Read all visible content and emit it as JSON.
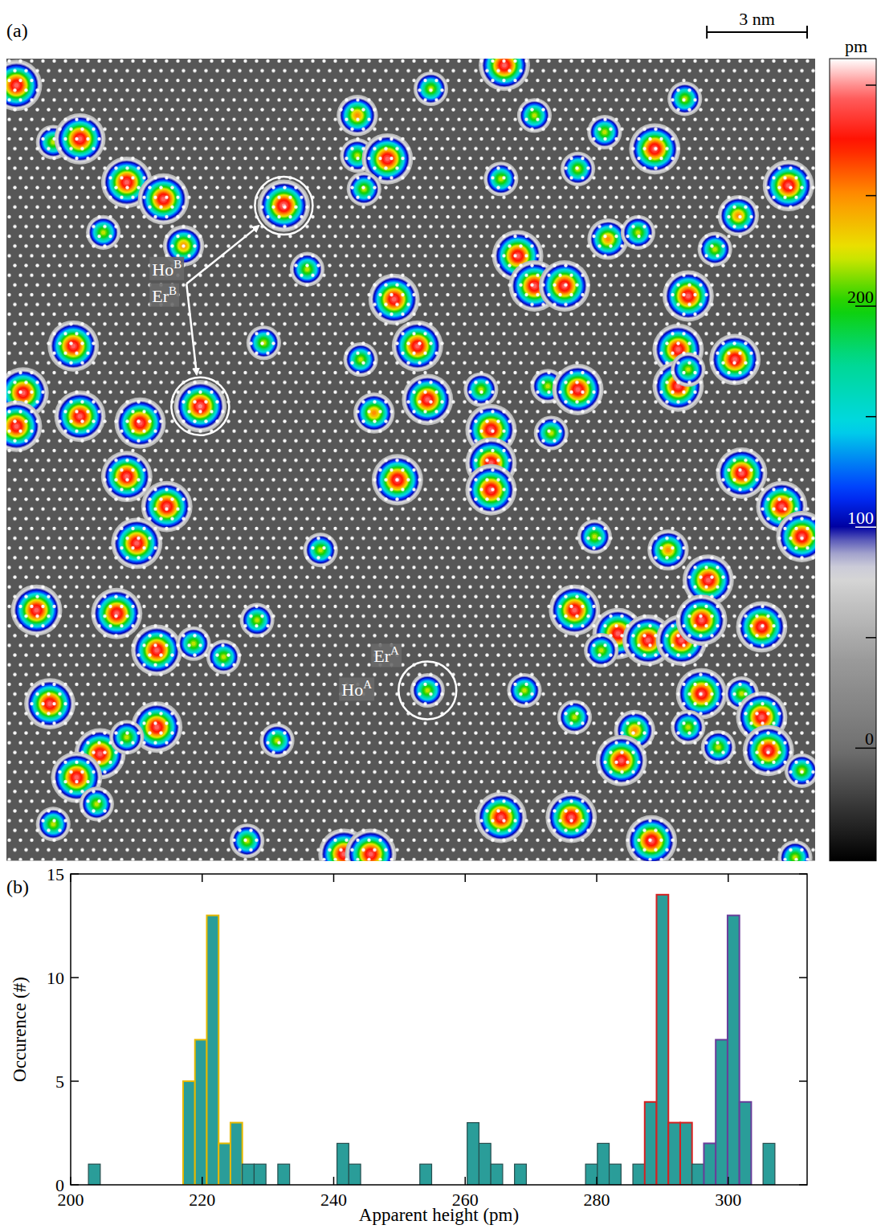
{
  "chart_data": [
    {
      "type": "image",
      "panel": "(a)",
      "scale_bar": {
        "length": 3,
        "label": "3 nm"
      },
      "extent_nm": [
        24.2,
        24.0
      ],
      "adsorbates": {
        "x": [
          0.3,
          1.4,
          2.2,
          3.6,
          4.7,
          2.9,
          5.3,
          8.3,
          9.0,
          10.5,
          10.5,
          11.4,
          10.7,
          12.7,
          14.9,
          15.8,
          17.9,
          19.4,
          20.3,
          17.1,
          14.8,
          23.4,
          21.9,
          15.3,
          18.0,
          18.9,
          21.2,
          15.8,
          16.7,
          11.6,
          20.4,
          7.7,
          2.0,
          12.3,
          20.1,
          20.1,
          20.4,
          21.8,
          10.6,
          11.0,
          5.8,
          0.5,
          0.3,
          2.2,
          4.0,
          12.6,
          14.2,
          16.2,
          17.1,
          14.5,
          14.5,
          14.5,
          16.3,
          3.6,
          11.7,
          22.0,
          4.8,
          23.2,
          23.8,
          17.6,
          9.4,
          3.9,
          19.8,
          21.0,
          0.9,
          3.3,
          17.0,
          4.5,
          5.6,
          6.5,
          7.5,
          18.3,
          19.2,
          20.2,
          20.8,
          17.8,
          22.6,
          12.6,
          15.5,
          17.0,
          20.8,
          22.0,
          22.6,
          1.3,
          4.5,
          2.8,
          3.6,
          2.1,
          2.7,
          18.8,
          18.4,
          20.4,
          21.3,
          22.8,
          8.1,
          23.8,
          1.4,
          14.8,
          16.9,
          19.3,
          7.2,
          10.1,
          10.9,
          23.6
        ],
        "y": [
          0.8,
          2.5,
          2.4,
          3.7,
          4.2,
          5.2,
          5.6,
          4.4,
          6.3,
          1.7,
          2.9,
          3.0,
          3.9,
          0.9,
          0.2,
          1.7,
          2.2,
          2.7,
          1.2,
          3.3,
          3.6,
          3.8,
          4.7,
          5.9,
          5.4,
          5.2,
          5.7,
          6.8,
          6.8,
          7.2,
          7.1,
          8.5,
          8.6,
          8.6,
          8.7,
          9.8,
          9.3,
          9.0,
          9.0,
          10.6,
          10.4,
          10.0,
          11.0,
          10.7,
          10.9,
          10.2,
          9.9,
          9.8,
          9.9,
          11.1,
          12.1,
          12.9,
          11.2,
          12.5,
          12.6,
          12.4,
          13.4,
          13.4,
          14.3,
          14.3,
          14.7,
          14.5,
          14.7,
          15.6,
          16.5,
          16.6,
          16.5,
          17.7,
          17.5,
          17.9,
          16.8,
          17.2,
          17.4,
          17.4,
          16.8,
          17.7,
          17.0,
          18.9,
          18.9,
          19.7,
          19.0,
          19.0,
          19.7,
          19.3,
          20.0,
          20.8,
          20.3,
          21.5,
          22.3,
          20.1,
          21.0,
          20.0,
          20.6,
          20.7,
          20.4,
          21.3,
          22.9,
          22.7,
          22.7,
          23.4,
          23.4,
          23.8,
          23.8,
          23.9
        ],
        "height": [
          295,
          220,
          295,
          295,
          295,
          220,
          250,
          300,
          220,
          250,
          220,
          295,
          220,
          220,
          295,
          220,
          220,
          295,
          220,
          220,
          220,
          295,
          250,
          295,
          250,
          220,
          220,
          295,
          295,
          295,
          295,
          220,
          295,
          295,
          295,
          295,
          220,
          295,
          220,
          250,
          300,
          295,
          295,
          295,
          295,
          295,
          220,
          220,
          295,
          295,
          295,
          295,
          220,
          295,
          295,
          295,
          295,
          295,
          295,
          220,
          220,
          295,
          250,
          295,
          295,
          295,
          295,
          295,
          220,
          220,
          220,
          295,
          295,
          295,
          295,
          220,
          295,
          220,
          220,
          220,
          295,
          220,
          295,
          295,
          295,
          295,
          220,
          295,
          220,
          250,
          295,
          220,
          220,
          295,
          220,
          220,
          220,
          295,
          295,
          295,
          220,
          295,
          295,
          220
        ]
      },
      "site_labels": [
        {
          "lines": [
            {
              "element": "Ho",
              "site": "B"
            },
            {
              "element": "Er",
              "site": "B"
            }
          ],
          "adsorbates": [
            7,
            40
          ]
        },
        {
          "lines": [
            {
              "element": "Er",
              "site": "A"
            },
            {
              "element": "Ho",
              "site": "A"
            }
          ],
          "adsorbates": [
            77
          ]
        }
      ],
      "colorbar": {
        "label": "pm",
        "range": [
          -51,
          312
        ],
        "ticks": [
          0,
          100,
          200
        ],
        "minor_ticks": [
          50,
          150,
          250,
          300
        ]
      }
    },
    {
      "type": "histogram",
      "panel": "(b)",
      "xlabel": "Apparent height (pm)",
      "ylabel": "Occurence (#)",
      "bins": [
        202.7,
        204.5,
        206.3,
        208.1,
        209.9,
        211.7,
        213.5,
        215.3,
        217.1,
        218.9,
        220.7,
        222.5,
        224.3,
        226.1,
        227.9,
        229.7,
        231.5,
        233.3,
        235.1,
        236.9,
        238.7,
        240.5,
        242.3,
        244.1,
        245.9,
        247.7,
        249.5,
        251.3,
        253.1,
        254.9,
        256.7,
        258.5,
        260.3,
        262.1,
        263.9,
        265.7,
        267.5,
        269.3,
        271.1,
        272.9,
        274.7,
        276.5,
        278.3,
        280.1,
        281.9,
        283.7,
        285.5,
        287.3,
        289.1,
        290.9,
        292.7,
        294.5,
        296.3,
        298.1,
        299.9,
        301.7,
        303.5,
        305.3,
        307.1
      ],
      "counts": [
        1,
        0,
        0,
        0,
        0,
        0,
        0,
        0,
        5,
        7,
        13,
        2,
        3,
        1,
        1,
        0,
        1,
        0,
        0,
        0,
        0,
        2,
        1,
        0,
        0,
        0,
        0,
        0,
        1,
        0,
        0,
        0,
        3,
        2,
        1,
        0,
        1,
        0,
        0,
        0,
        0,
        0,
        1,
        2,
        1,
        0,
        1,
        4,
        14,
        3,
        3,
        1,
        2,
        7,
        13,
        4,
        0,
        2
      ],
      "color": "#2a9d99",
      "colors": [
        "#264d4d",
        "#264d4d",
        "#264d4d",
        "#264d4d",
        "#264d4d",
        "#264d4d",
        "#264d4d",
        "#264d4d",
        "#e6b800",
        "#e6b800",
        "#e6b800",
        "#e6b800",
        "#e6b800",
        "#264d4d",
        "#264d4d",
        "#264d4d",
        "#264d4d",
        "#264d4d",
        "#264d4d",
        "#264d4d",
        "#264d4d",
        "#264d4d",
        "#264d4d",
        "#264d4d",
        "#264d4d",
        "#264d4d",
        "#264d4d",
        "#264d4d",
        "#264d4d",
        "#264d4d",
        "#264d4d",
        "#264d4d",
        "#264d4d",
        "#264d4d",
        "#264d4d",
        "#264d4d",
        "#264d4d",
        "#264d4d",
        "#264d4d",
        "#264d4d",
        "#264d4d",
        "#264d4d",
        "#264d4d",
        "#264d4d",
        "#264d4d",
        "#264d4d",
        "#264d4d",
        "#d62020",
        "#d62020",
        "#d62020",
        "#d62020",
        "#264d4d",
        "#6a3d9a",
        "#6a3d9a",
        "#6a3d9a",
        "#6a3d9a",
        "#264d4d",
        "#264d4d"
      ],
      "xlim": [
        200,
        312
      ],
      "ylim": [
        0,
        15
      ],
      "xticks": [
        200,
        220,
        240,
        260,
        280,
        300
      ],
      "yticks": [
        0,
        5,
        10,
        15
      ]
    }
  ]
}
